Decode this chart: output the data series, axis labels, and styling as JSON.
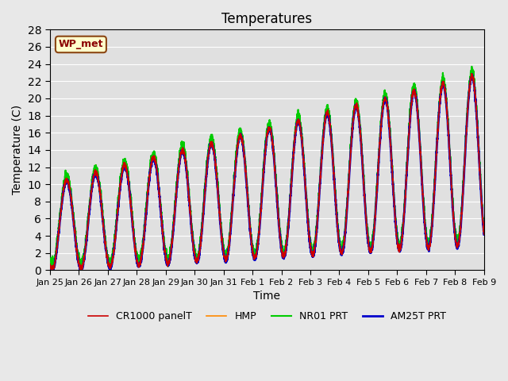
{
  "title": "Temperatures",
  "xlabel": "Time",
  "ylabel": "Temperature (C)",
  "ylim": [
    0,
    28
  ],
  "yticks": [
    0,
    2,
    4,
    6,
    8,
    10,
    12,
    14,
    16,
    18,
    20,
    22,
    24,
    26,
    28
  ],
  "xtick_labels": [
    "Jan 25",
    "Jan 26",
    "Jan 27",
    "Jan 28",
    "Jan 29",
    "Jan 30",
    "Jan 31",
    "Feb 1",
    "Feb 2",
    "Feb 3",
    "Feb 4",
    "Feb 5",
    "Feb 6",
    "Feb 7",
    "Feb 8",
    "Feb 9"
  ],
  "series_colors": {
    "CR1000 panelT": "#cc0000",
    "HMP": "#ff8800",
    "NR01 PRT": "#00cc00",
    "AM25T PRT": "#0000cc"
  },
  "series_lw": {
    "CR1000 panelT": 1.2,
    "HMP": 1.2,
    "NR01 PRT": 1.5,
    "AM25T PRT": 2.0
  },
  "wp_met_label": "WP_met",
  "wp_met_facecolor": "#ffffcc",
  "wp_met_edgecolor": "#8b4513",
  "wp_met_textcolor": "#8b0000",
  "bg_color": "#e8e8e8",
  "plot_bg_color": "#e0e0e0",
  "n_points": 3600,
  "days": 15
}
